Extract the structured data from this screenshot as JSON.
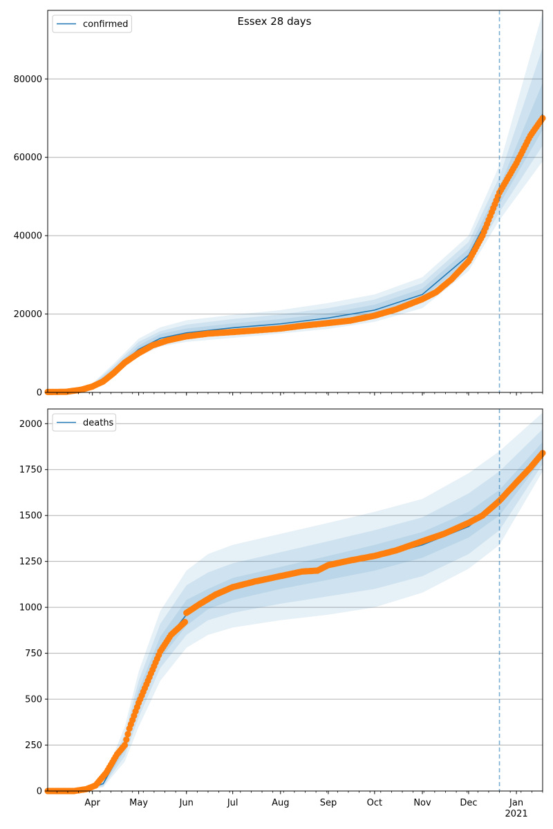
{
  "colors": {
    "line": "#1f77b4",
    "points": "#ff7f0e",
    "band": "#1f77b4",
    "grid": "#b0b0b0",
    "vline": "#1f77b4"
  },
  "chart_data": [
    {
      "type": "line",
      "title": "Essex 28 days",
      "legend": [
        "confirmed"
      ],
      "legend_position": "top-left",
      "grid": "y",
      "ylim": [
        0,
        97500
      ],
      "yticks": [
        0,
        20000,
        40000,
        60000,
        80000
      ],
      "xlabel": "",
      "ylabel": "",
      "xlim": [
        "2020-03-03",
        "2021-01-18"
      ],
      "xtick_dates": [
        "2020-04-01",
        "2020-05-01",
        "2020-06-01",
        "2020-07-01",
        "2020-08-01",
        "2020-09-01",
        "2020-10-01",
        "2020-11-01",
        "2020-12-01",
        "2021-01-01"
      ],
      "xtick_labels": [
        "",
        "",
        "",
        "",
        "",
        "",
        "",
        "",
        "",
        ""
      ],
      "forecast_start": "2020-12-21",
      "model": {
        "x": [
          "2020-03-03",
          "2020-03-20",
          "2020-04-01",
          "2020-04-15",
          "2020-05-01",
          "2020-05-15",
          "2020-06-01",
          "2020-07-01",
          "2020-08-01",
          "2020-09-01",
          "2020-10-01",
          "2020-11-01",
          "2020-12-01",
          "2020-12-21",
          "2021-01-18"
        ],
        "y": [
          0,
          200,
          1700,
          5500,
          11000,
          13800,
          15200,
          16500,
          17500,
          19000,
          21000,
          25000,
          35000,
          50000,
          71000
        ]
      },
      "bands": [
        {
          "level": 95,
          "lower": [
            0,
            0,
            1300,
            4300,
            9200,
            11700,
            12900,
            13900,
            15000,
            16200,
            18000,
            21500,
            31000,
            44000,
            59000
          ],
          "upper": [
            0,
            400,
            2300,
            7400,
            13700,
            16600,
            18400,
            19800,
            21000,
            22800,
            25000,
            29400,
            40000,
            58000,
            97000
          ]
        },
        {
          "level": 80,
          "lower": [
            0,
            0,
            1400,
            4700,
            9800,
            12400,
            13700,
            14900,
            15900,
            17200,
            19200,
            22900,
            32400,
            46000,
            63000
          ],
          "upper": [
            0,
            300,
            2100,
            6800,
            12900,
            15600,
            17300,
            18700,
            19900,
            21500,
            23700,
            27900,
            38400,
            55000,
            88000
          ]
        },
        {
          "level": 50,
          "lower": [
            0,
            100,
            1550,
            5100,
            10400,
            13100,
            14400,
            15700,
            16700,
            18100,
            20100,
            24000,
            33700,
            48000,
            67000
          ],
          "upper": [
            0,
            250,
            1900,
            6200,
            12000,
            14900,
            16300,
            17600,
            18700,
            20200,
            22400,
            26500,
            36700,
            52500,
            79000
          ]
        }
      ],
      "observed": {
        "x": [
          "2020-03-03",
          "2020-03-15",
          "2020-03-25",
          "2020-04-01",
          "2020-04-08",
          "2020-04-15",
          "2020-04-22",
          "2020-05-01",
          "2020-05-10",
          "2020-05-20",
          "2020-06-01",
          "2020-06-15",
          "2020-07-01",
          "2020-07-15",
          "2020-08-01",
          "2020-08-15",
          "2020-09-01",
          "2020-09-15",
          "2020-10-01",
          "2020-10-15",
          "2020-11-01",
          "2020-11-10",
          "2020-11-20",
          "2020-12-01",
          "2020-12-10",
          "2020-12-21",
          "2021-01-01",
          "2021-01-10",
          "2021-01-18"
        ],
        "y": [
          100,
          150,
          700,
          1500,
          2800,
          5000,
          7600,
          10000,
          12000,
          13300,
          14300,
          15000,
          15400,
          15800,
          16300,
          17000,
          17700,
          18300,
          19600,
          21200,
          23800,
          25600,
          28900,
          33500,
          40000,
          51000,
          58500,
          65500,
          70000
        ]
      }
    },
    {
      "type": "line",
      "title": "",
      "legend": [
        "deaths"
      ],
      "legend_position": "top-left",
      "grid": "y",
      "ylim": [
        0,
        2080
      ],
      "yticks": [
        0,
        250,
        500,
        750,
        1000,
        1250,
        1500,
        1750,
        2000
      ],
      "xlabel": "",
      "ylabel": "",
      "xlim": [
        "2020-03-03",
        "2021-01-18"
      ],
      "xtick_dates": [
        "2020-04-01",
        "2020-05-01",
        "2020-06-01",
        "2020-07-01",
        "2020-08-01",
        "2020-09-01",
        "2020-10-01",
        "2020-11-01",
        "2020-12-01",
        "2021-01-01"
      ],
      "xtick_labels": [
        "Apr",
        "May",
        "Jun",
        "Jul",
        "Aug",
        "Sep",
        "Oct",
        "Nov",
        "Dec",
        "Jan"
      ],
      "year_label": "2021",
      "forecast_start": "2020-12-21",
      "model": {
        "x": [
          "2020-03-03",
          "2020-03-25",
          "2020-04-08",
          "2020-04-22",
          "2020-05-01",
          "2020-05-15",
          "2020-06-01",
          "2020-06-15",
          "2020-07-01",
          "2020-08-01",
          "2020-09-01",
          "2020-10-01",
          "2020-11-01",
          "2020-12-01",
          "2020-12-21",
          "2021-01-18"
        ],
        "y": [
          0,
          0,
          40,
          250,
          500,
          780,
          960,
          1040,
          1100,
          1160,
          1220,
          1270,
          1340,
          1440,
          1570,
          1840
        ]
      },
      "bands": [
        {
          "level": 95,
          "lower": [
            0,
            0,
            20,
            160,
            350,
            600,
            780,
            850,
            890,
            930,
            960,
            1000,
            1080,
            1210,
            1340,
            1740
          ],
          "upper": [
            0,
            0,
            60,
            350,
            650,
            980,
            1200,
            1290,
            1340,
            1400,
            1460,
            1520,
            1590,
            1730,
            1850,
            2060
          ]
        },
        {
          "level": 80,
          "lower": [
            0,
            0,
            25,
            190,
            400,
            670,
            850,
            930,
            970,
            1020,
            1060,
            1100,
            1170,
            1290,
            1420,
            1780
          ],
          "upper": [
            0,
            0,
            50,
            310,
            600,
            910,
            1120,
            1190,
            1240,
            1300,
            1360,
            1420,
            1490,
            1620,
            1740,
            1970
          ]
        },
        {
          "level": 50,
          "lower": [
            0,
            0,
            32,
            220,
            450,
            720,
            900,
            990,
            1040,
            1100,
            1150,
            1200,
            1270,
            1380,
            1500,
            1810
          ],
          "upper": [
            0,
            0,
            45,
            280,
            550,
            840,
            1040,
            1100,
            1160,
            1220,
            1280,
            1340,
            1410,
            1520,
            1640,
            1900
          ]
        }
      ],
      "observed": {
        "x": [
          "2020-03-03",
          "2020-03-20",
          "2020-03-28",
          "2020-04-03",
          "2020-04-10",
          "2020-04-17",
          "2020-04-22",
          "2020-04-25",
          "2020-05-01",
          "2020-05-08",
          "2020-05-15",
          "2020-05-22",
          "2020-05-31",
          "2020-06-01",
          "2020-06-10",
          "2020-06-20",
          "2020-07-01",
          "2020-07-15",
          "2020-08-01",
          "2020-08-15",
          "2020-08-25",
          "2020-09-01",
          "2020-09-15",
          "2020-10-01",
          "2020-10-15",
          "2020-11-01",
          "2020-11-15",
          "2020-12-01",
          "2020-12-10",
          "2020-12-21",
          "2021-01-01",
          "2021-01-10",
          "2021-01-18"
        ],
        "y": [
          0,
          0,
          10,
          30,
          100,
          200,
          250,
          340,
          480,
          620,
          760,
          850,
          920,
          970,
          1020,
          1070,
          1110,
          1140,
          1170,
          1195,
          1200,
          1230,
          1255,
          1280,
          1310,
          1360,
          1400,
          1460,
          1500,
          1580,
          1680,
          1760,
          1840
        ]
      }
    }
  ]
}
